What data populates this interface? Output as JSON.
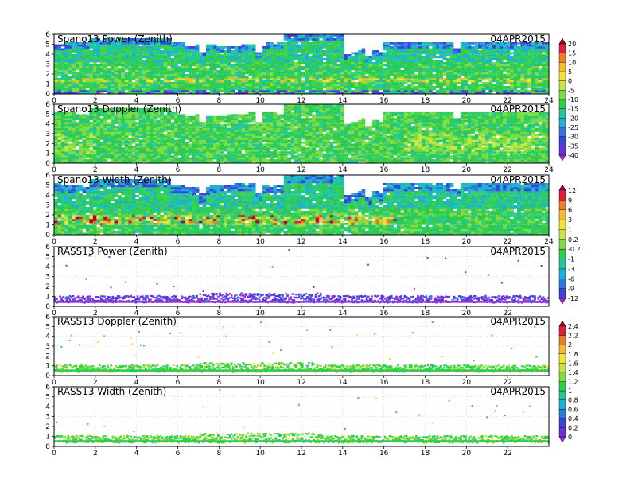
{
  "chart_data": [
    {
      "type": "heatmap",
      "title": "Spano13 Power (Zenith)",
      "date": "04APR2015",
      "x_range": [
        0,
        24
      ],
      "y_range": [
        0,
        6
      ],
      "x_ticks": [
        "0",
        "2",
        "4",
        "6",
        "8",
        "10",
        "12",
        "14",
        "16",
        "18",
        "20",
        "22",
        "24"
      ],
      "y_ticks": [
        "0",
        "1",
        "2",
        "3",
        "4",
        "5",
        "6"
      ],
      "style": "dense",
      "colorbar": {
        "ticks": [
          "20",
          "15",
          "10",
          "5",
          "0",
          "-5",
          "-10",
          "-15",
          "-20",
          "-25",
          "-30",
          "-35",
          "-40"
        ],
        "colors": [
          "#b00030",
          "#e0203a",
          "#f07c2a",
          "#f6bc2e",
          "#f2e33a",
          "#c7e646",
          "#7fdc42",
          "#2ecc48",
          "#20c8a0",
          "#1fb0d8",
          "#2e78e6",
          "#3a44dc",
          "#6a32d8",
          "#9a2ed6"
        ]
      }
    },
    {
      "type": "heatmap",
      "title": "Spano13 Doppler (Zenith)",
      "date": "04APR2015",
      "x_range": [
        0,
        24
      ],
      "y_range": [
        0,
        6
      ],
      "x_ticks": [
        "0",
        "2",
        "4",
        "6",
        "8",
        "10",
        "12",
        "14",
        "16",
        "18",
        "20",
        "22",
        "24"
      ],
      "y_ticks": [
        "0",
        "1",
        "2",
        "3",
        "4",
        "5",
        "6"
      ],
      "style": "dense"
    },
    {
      "type": "heatmap",
      "title": "Spano13 Width (Zenith)",
      "date": "04APR2015",
      "x_range": [
        0,
        24
      ],
      "y_range": [
        0,
        6
      ],
      "x_ticks": [
        "0",
        "2",
        "4",
        "6",
        "8",
        "10",
        "12",
        "14",
        "16",
        "18",
        "20",
        "22",
        "24"
      ],
      "y_ticks": [
        "0",
        "1",
        "2",
        "3",
        "4",
        "5",
        "6"
      ],
      "style": "dense-width",
      "colorbar": {
        "ticks": [
          "12",
          "9",
          "6",
          "3",
          "1",
          "0.2",
          "-0.2",
          "-1",
          "-3",
          "-6",
          "-9",
          "-12"
        ],
        "colors": [
          "#b00030",
          "#e0203a",
          "#f07c2a",
          "#f6bc2e",
          "#f2e33a",
          "#c7e646",
          "#7fdc42",
          "#2ecc48",
          "#20c8a0",
          "#1fb0d8",
          "#2e78e6",
          "#3a44dc",
          "#9a2ed6"
        ]
      }
    },
    {
      "type": "heatmap",
      "title": "RASS13 Power (Zenith)",
      "date": "04APR2015",
      "x_range": [
        0,
        24
      ],
      "y_range": [
        0,
        6
      ],
      "x_ticks": [
        "0",
        "2",
        "4",
        "6",
        "8",
        "10",
        "12",
        "14",
        "16",
        "18",
        "20",
        "22"
      ],
      "y_ticks": [
        "0",
        "1",
        "2",
        "3",
        "4",
        "5",
        "6"
      ],
      "style": "rass-power"
    },
    {
      "type": "heatmap",
      "title": "RASS13 Doppler (Zenith)",
      "date": "04APR2015",
      "x_range": [
        0,
        24
      ],
      "y_range": [
        0,
        6
      ],
      "x_ticks": [
        "0",
        "2",
        "4",
        "6",
        "8",
        "10",
        "12",
        "14",
        "16",
        "18",
        "20",
        "22"
      ],
      "y_ticks": [
        "0",
        "1",
        "2",
        "3",
        "4",
        "5",
        "6"
      ],
      "style": "rass",
      "colorbar": {
        "ticks": [
          "2.4",
          "2.2",
          "2",
          "1.8",
          "1.6",
          "1.4",
          "1.2",
          "1",
          "0.8",
          "0.6",
          "0.4",
          "0.2",
          "0"
        ],
        "colors": [
          "#b00030",
          "#e0203a",
          "#f07c2a",
          "#f6bc2e",
          "#f2e33a",
          "#c7e646",
          "#7fdc42",
          "#2ecc48",
          "#20c8a0",
          "#1fb0d8",
          "#2e78e6",
          "#3a44dc",
          "#6a32d8",
          "#9a2ed6"
        ]
      }
    },
    {
      "type": "heatmap",
      "title": "RASS13 Width (Zenith)",
      "date": "04APR2015",
      "x_range": [
        0,
        24
      ],
      "y_range": [
        0,
        6
      ],
      "x_ticks": [
        "0",
        "2",
        "4",
        "6",
        "8",
        "10",
        "12",
        "14",
        "16",
        "18",
        "20",
        "22"
      ],
      "y_ticks": [
        "0",
        "1",
        "2",
        "3",
        "4",
        "5",
        "6"
      ],
      "style": "rass"
    }
  ]
}
